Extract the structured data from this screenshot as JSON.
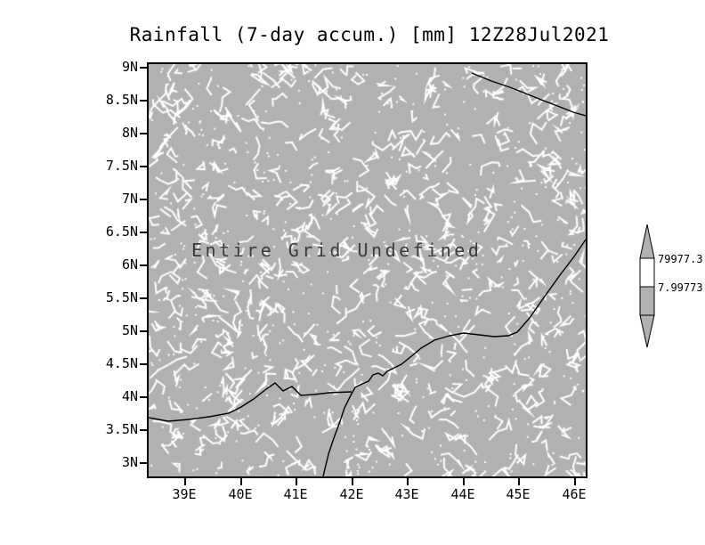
{
  "title": "Rainfall (7-day accum.) [mm] 12Z28Jul2021",
  "colors": {
    "background": "#ffffff",
    "grid_fill": "#b1b1b1",
    "noise": "#ffffff",
    "line": "#000000",
    "annotation_text": "#3c3c3c"
  },
  "chart_data": {
    "type": "heatmap",
    "title": "Rainfall (7-day accum.) [mm] 12Z28Jul2021",
    "annotation": "Entire Grid Undefined",
    "values": "entire grid undefined (no data plotted)",
    "x_ticks": [
      "39E",
      "40E",
      "41E",
      "42E",
      "43E",
      "44E",
      "45E",
      "46E"
    ],
    "y_ticks": [
      "9N",
      "8.5N",
      "8N",
      "7.5N",
      "7N",
      "6.5N",
      "6N",
      "5.5N",
      "5N",
      "4.5N",
      "4N",
      "3.5N",
      "3N"
    ],
    "xlabel": "",
    "ylabel": "",
    "grid": "off",
    "colorbar": {
      "position": "right",
      "labels": [
        "79977.3",
        "7.99773"
      ]
    }
  }
}
